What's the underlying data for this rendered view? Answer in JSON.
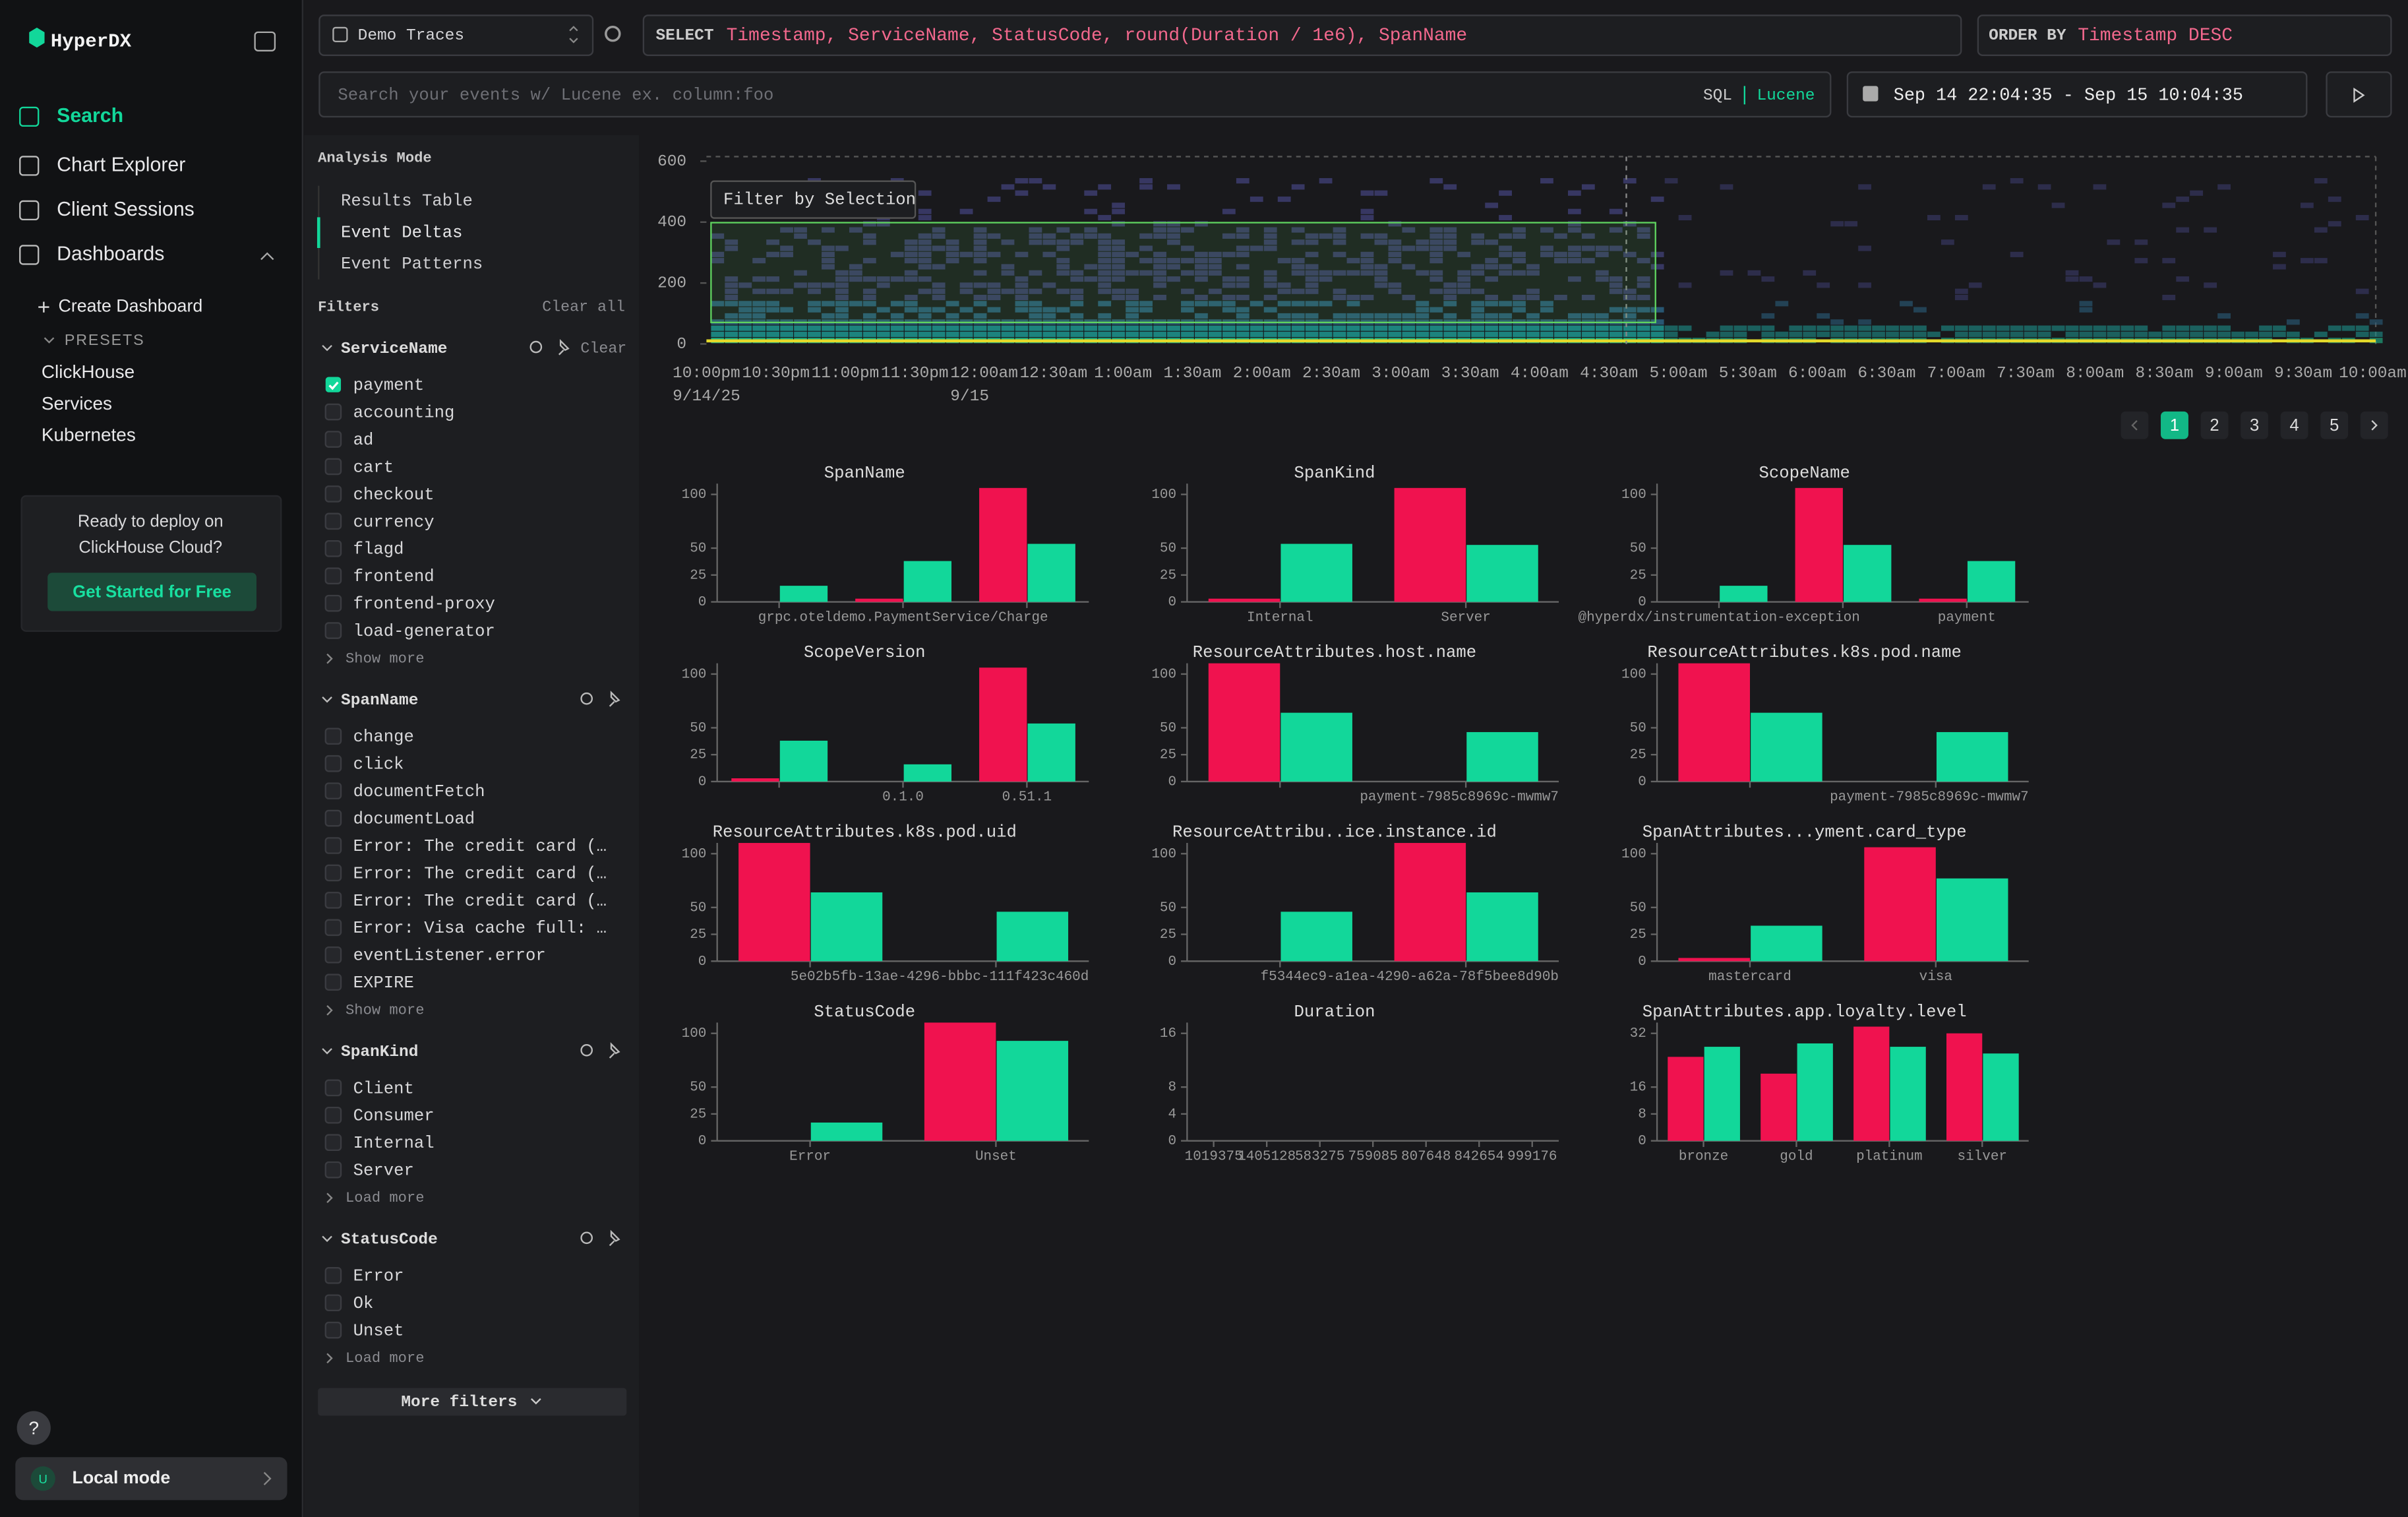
{
  "sidebar": {
    "brand": "HyperDX",
    "nav": [
      "Search",
      "Chart Explorer",
      "Client Sessions",
      "Dashboards"
    ],
    "active_nav": 0,
    "create": "Create Dashboard",
    "presets_heading": "PRESETS",
    "presets": [
      "ClickHouse",
      "Services",
      "Kubernetes"
    ],
    "promo": {
      "text": [
        "Ready to deploy on",
        "ClickHouse Cloud?"
      ],
      "button": "Get Started for Free"
    },
    "help": "?",
    "user": {
      "initial": "U",
      "label": "Local mode"
    }
  },
  "query": {
    "source": "Demo Traces",
    "select_keyword": "SELECT",
    "select": "Timestamp, ServiceName, StatusCode, round(Duration / 1e6), SpanName",
    "order_keyword": "ORDER BY",
    "order": "Timestamp DESC",
    "search_placeholder": "Search your events w/ Lucene ex. column:foo",
    "languages": [
      "SQL",
      "Lucene"
    ],
    "active_language": 1,
    "time_range": "Sep 14 22:04:35 - Sep 15 10:04:35"
  },
  "filters": {
    "analysis_heading": "Analysis Mode",
    "modes": [
      "Results Table",
      "Event Deltas",
      "Event Patterns"
    ],
    "active_mode": 1,
    "heading": "Filters",
    "clear_all": "Clear all",
    "groups": [
      {
        "name": "ServiceName",
        "clear": "Clear",
        "values": [
          "payment",
          "accounting",
          "ad",
          "cart",
          "checkout",
          "currency",
          "flagd",
          "frontend",
          "frontend-proxy",
          "load-generator"
        ],
        "checked": [
          0
        ],
        "more": "Show more"
      },
      {
        "name": "SpanName",
        "values": [
          "change",
          "click",
          "documentFetch",
          "documentLoad",
          "Error: The credit card (…",
          "Error: The credit card (…",
          "Error: The credit card (…",
          "Error: Visa cache full: …",
          "eventListener.error",
          "EXPIRE"
        ],
        "checked": [],
        "more": "Show more"
      },
      {
        "name": "SpanKind",
        "values": [
          "Client",
          "Consumer",
          "Internal",
          "Server"
        ],
        "checked": [],
        "more": "Load more"
      },
      {
        "name": "StatusCode",
        "values": [
          "Error",
          "Ok",
          "Unset"
        ],
        "checked": [],
        "more": "Load more"
      }
    ],
    "more_filters": "More filters"
  },
  "heatmap": {
    "ylim": [
      0,
      615
    ],
    "yticks": [
      0,
      200,
      400,
      600
    ],
    "x_labels": [
      "10:00pm",
      "10:30pm",
      "11:00pm",
      "11:30pm",
      "12:00am",
      "12:30am",
      "1:00am",
      "1:30am",
      "2:00am",
      "2:30am",
      "3:00am",
      "3:30am",
      "4:00am",
      "4:30am",
      "5:00am",
      "5:30am",
      "6:00am",
      "6:30am",
      "7:00am",
      "7:30am",
      "8:00am",
      "8:30am",
      "9:00am",
      "9:30am",
      "10:00am"
    ],
    "x_sublabels": [
      "9/14/25",
      null,
      null,
      null,
      "9/15",
      null,
      null,
      null,
      null,
      null,
      null,
      null,
      null,
      null,
      null,
      null,
      null,
      null,
      null,
      null,
      null,
      null,
      null,
      null,
      null
    ],
    "selection_button": "Filter by Selection"
  },
  "pagination": {
    "pages": [
      1,
      2,
      3,
      4,
      5
    ],
    "active": 0
  },
  "charts": [
    {
      "type": "bar",
      "title": "SpanName",
      "categories": [
        null,
        "grpc.oteldemo.PaymentService/Charge",
        null
      ],
      "series": [
        {
          "color": "#f0124f",
          "values": [
            0,
            3,
            106
          ]
        },
        {
          "color": "#12d79a",
          "values": [
            15,
            38,
            54
          ]
        }
      ],
      "ylim": [
        0,
        110
      ],
      "yticks": [
        0,
        25,
        50,
        100
      ]
    },
    {
      "type": "bar",
      "title": "SpanKind",
      "categories": [
        "Internal",
        "Server"
      ],
      "series": [
        {
          "color": "#f0124f",
          "values": [
            3,
            106
          ]
        },
        {
          "color": "#12d79a",
          "values": [
            54,
            53
          ]
        }
      ],
      "ylim": [
        0,
        110
      ],
      "yticks": [
        0,
        25,
        50,
        100
      ]
    },
    {
      "type": "bar",
      "title": "ScopeName",
      "categories": [
        "@hyperdx/instrumentation-exception",
        null,
        "payment"
      ],
      "series": [
        {
          "color": "#f0124f",
          "values": [
            0,
            106,
            3
          ]
        },
        {
          "color": "#12d79a",
          "values": [
            15,
            53,
            38
          ]
        }
      ],
      "ylim": [
        0,
        110
      ],
      "yticks": [
        0,
        25,
        50,
        100
      ]
    },
    {
      "type": "bar",
      "title": "ScopeVersion",
      "categories": [
        null,
        "0.1.0",
        "0.51.1"
      ],
      "series": [
        {
          "color": "#f0124f",
          "values": [
            3,
            0,
            106
          ]
        },
        {
          "color": "#12d79a",
          "values": [
            38,
            16,
            54
          ]
        }
      ],
      "ylim": [
        0,
        110
      ],
      "yticks": [
        0,
        25,
        50,
        100
      ]
    },
    {
      "type": "bar",
      "title": "ResourceAttributes.host.name",
      "categories": [
        null,
        "payment-7985c8969c-mwmw7"
      ],
      "series": [
        {
          "color": "#f0124f",
          "values": [
            110,
            0
          ]
        },
        {
          "color": "#12d79a",
          "values": [
            64,
            46
          ]
        }
      ],
      "ylim": [
        0,
        110
      ],
      "yticks": [
        0,
        25,
        50,
        100
      ]
    },
    {
      "type": "bar",
      "title": "ResourceAttributes.k8s.pod.name",
      "categories": [
        null,
        "payment-7985c8969c-mwmw7"
      ],
      "series": [
        {
          "color": "#f0124f",
          "values": [
            110,
            0
          ]
        },
        {
          "color": "#12d79a",
          "values": [
            64,
            46
          ]
        }
      ],
      "ylim": [
        0,
        110
      ],
      "yticks": [
        0,
        25,
        50,
        100
      ]
    },
    {
      "type": "bar",
      "title": "ResourceAttributes.k8s.pod.uid",
      "categories": [
        null,
        "5e02b5fb-13ae-4296-bbbc-111f423c460d"
      ],
      "series": [
        {
          "color": "#f0124f",
          "values": [
            110,
            0
          ]
        },
        {
          "color": "#12d79a",
          "values": [
            64,
            46
          ]
        }
      ],
      "ylim": [
        0,
        110
      ],
      "yticks": [
        0,
        25,
        50,
        100
      ]
    },
    {
      "type": "bar",
      "title": "ResourceAttribu..ice.instance.id",
      "categories": [
        null,
        "f5344ec9-a1ea-4290-a62a-78f5bee8d90b"
      ],
      "series": [
        {
          "color": "#f0124f",
          "values": [
            0,
            110
          ]
        },
        {
          "color": "#12d79a",
          "values": [
            46,
            64
          ]
        }
      ],
      "ylim": [
        0,
        110
      ],
      "yticks": [
        0,
        25,
        50,
        100
      ]
    },
    {
      "type": "bar",
      "title": "SpanAttributes...yment.card_type",
      "categories": [
        "mastercard",
        "visa"
      ],
      "series": [
        {
          "color": "#f0124f",
          "values": [
            3,
            106
          ]
        },
        {
          "color": "#12d79a",
          "values": [
            33,
            77
          ]
        }
      ],
      "ylim": [
        0,
        110
      ],
      "yticks": [
        0,
        25,
        50,
        100
      ]
    },
    {
      "type": "bar",
      "title": "StatusCode",
      "categories": [
        "Error",
        "Unset"
      ],
      "series": [
        {
          "color": "#f0124f",
          "values": [
            0,
            110
          ]
        },
        {
          "color": "#12d79a",
          "values": [
            17,
            93
          ]
        }
      ],
      "ylim": [
        0,
        110
      ],
      "yticks": [
        0,
        25,
        50,
        100
      ]
    },
    {
      "type": "bar",
      "title": "Duration",
      "categories": [
        "1019375",
        "1405128",
        "583275",
        "759085",
        "807648",
        "842654",
        "999176"
      ],
      "series": [
        {
          "color": "#f0124f",
          "values": [
            0,
            0,
            0,
            0,
            0,
            0,
            0
          ]
        },
        {
          "color": "#12d79a",
          "values": [
            0,
            0,
            0,
            0,
            0,
            0,
            0
          ]
        }
      ],
      "ylim": [
        0,
        17.6
      ],
      "yticks": [
        0,
        4,
        8,
        16
      ]
    },
    {
      "type": "bar",
      "title": "SpanAttributes.app.loyalty.level",
      "categories": [
        "bronze",
        "gold",
        "platinum",
        "silver"
      ],
      "series": [
        {
          "color": "#f0124f",
          "values": [
            25,
            20,
            34,
            32
          ]
        },
        {
          "color": "#12d79a",
          "values": [
            28,
            29,
            28,
            26
          ]
        }
      ],
      "ylim": [
        0,
        35.2
      ],
      "yticks": [
        0,
        8,
        16,
        32
      ]
    }
  ]
}
